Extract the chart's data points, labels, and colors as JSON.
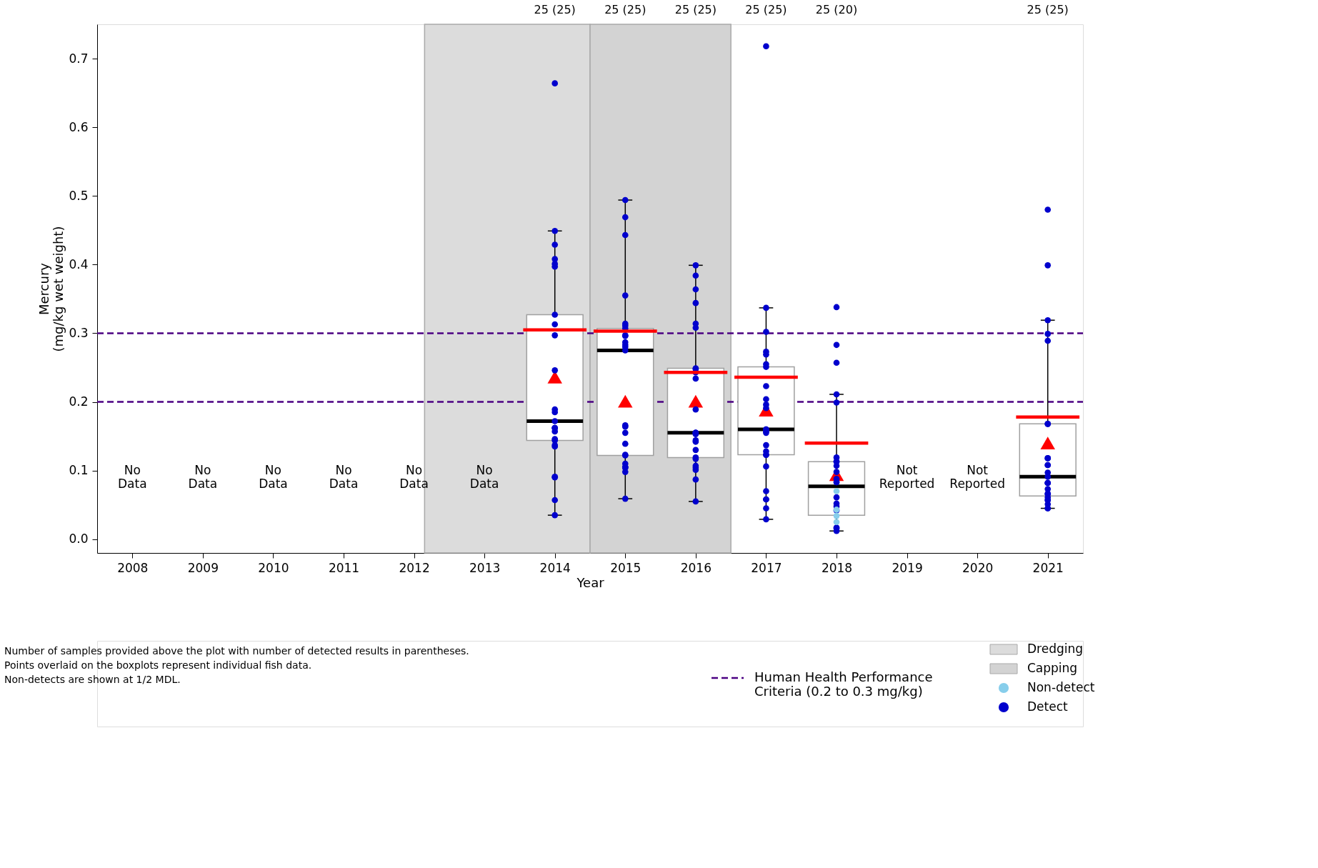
{
  "chart_data": {
    "type": "box",
    "xlabel": "Year",
    "ylabel": "Mercury\n(mg/kg wet weight)",
    "x": [
      2014,
      2015,
      2016,
      2017,
      2018,
      2021
    ],
    "xlim": [
      2007.5,
      2021.5
    ],
    "xticks": [
      2008,
      2009,
      2010,
      2011,
      2012,
      2013,
      2014,
      2015,
      2016,
      2017,
      2018,
      2019,
      2020,
      2021
    ],
    "ylim": [
      -0.02,
      0.75
    ],
    "yticks": [
      {
        "value": 0,
        "label": "0.0"
      },
      0.1,
      0.2,
      0.3,
      0.4,
      0.5,
      0.6,
      0.7
    ],
    "grid": false,
    "legend": "bottom right",
    "boxes": [
      {
        "low": 0.035,
        "q1": 0.144,
        "median": 0.172,
        "q3": 0.327,
        "high": 0.449,
        "mean": 0.236
      },
      {
        "low": 0.059,
        "q1": 0.122,
        "median": 0.275,
        "q3": 0.307,
        "high": 0.494,
        "mean": 0.201
      },
      {
        "low": 0.055,
        "q1": 0.119,
        "median": 0.155,
        "q3": 0.249,
        "high": 0.399,
        "mean": 0.201
      },
      {
        "low": 0.029,
        "q1": 0.123,
        "median": 0.16,
        "q3": 0.251,
        "high": 0.337,
        "mean": 0.188
      },
      {
        "low": 0.012,
        "q1": 0.035,
        "median": 0.077,
        "q3": 0.113,
        "high": 0.211,
        "mean": 0.094
      },
      {
        "low": 0.045,
        "q1": 0.063,
        "median": 0.091,
        "q3": 0.168,
        "high": 0.319,
        "mean": 0.14
      }
    ],
    "series": [
      {
        "type": "line",
        "color": "#ff0000",
        "line_style": "solid",
        "x": [
          2013.55,
          2014.45
        ],
        "values": [
          0.305,
          0.305
        ]
      },
      {
        "type": "line",
        "color": "#ff0000",
        "line_style": "solid",
        "x": [
          2014.55,
          2015.45
        ],
        "values": [
          0.303,
          0.303
        ]
      },
      {
        "type": "line",
        "color": "#ff0000",
        "line_style": "solid",
        "x": [
          2015.55,
          2016.45
        ],
        "values": [
          0.243,
          0.243
        ]
      },
      {
        "type": "line",
        "color": "#ff0000",
        "line_style": "solid",
        "x": [
          2016.55,
          2017.45
        ],
        "values": [
          0.236,
          0.236
        ]
      },
      {
        "type": "line",
        "color": "#ff0000",
        "line_style": "solid",
        "x": [
          2017.55,
          2018.45
        ],
        "values": [
          0.14,
          0.14
        ]
      },
      {
        "type": "line",
        "color": "#ff0000",
        "line_style": "solid",
        "x": [
          2020.55,
          2021.45
        ],
        "values": [
          0.178,
          0.178
        ]
      },
      {
        "type": "scatter",
        "name": "Non-detect",
        "color": "#87ceeb",
        "marker": "circle",
        "x": [
          2018,
          2018,
          2018,
          2018
        ],
        "values": [
          0.07,
          0.043,
          0.034,
          0.025
        ]
      },
      {
        "type": "scatter",
        "name": "Detect",
        "color": "#0000cd",
        "marker": "circle",
        "x": [
          2014,
          2014,
          2014,
          2014,
          2014,
          2014,
          2014,
          2014,
          2014,
          2014,
          2014,
          2014,
          2014,
          2014,
          2014,
          2014,
          2014,
          2014,
          2014,
          2014,
          2014,
          2014,
          2014,
          2014,
          2014,
          2015,
          2015,
          2015,
          2015,
          2015,
          2015,
          2015,
          2015,
          2015,
          2015,
          2015,
          2015,
          2015,
          2015,
          2015,
          2015,
          2015,
          2015,
          2015,
          2015,
          2015,
          2015,
          2015,
          2015,
          2015,
          2016,
          2016,
          2016,
          2016,
          2016,
          2016,
          2016,
          2016,
          2016,
          2016,
          2016,
          2016,
          2016,
          2016,
          2016,
          2016,
          2016,
          2016,
          2016,
          2016,
          2016,
          2016,
          2016,
          2016,
          2016,
          2017,
          2017,
          2017,
          2017,
          2017,
          2017,
          2017,
          2017,
          2017,
          2017,
          2017,
          2017,
          2017,
          2017,
          2017,
          2017,
          2017,
          2017,
          2017,
          2017,
          2017,
          2017,
          2017,
          2017,
          2017,
          2018,
          2018,
          2018,
          2018,
          2018,
          2018,
          2018,
          2018,
          2018,
          2018,
          2018,
          2018,
          2018,
          2018,
          2018,
          2018,
          2018,
          2018,
          2018,
          2018,
          2021,
          2021,
          2021,
          2021,
          2021,
          2021,
          2021,
          2021,
          2021,
          2021,
          2021,
          2021,
          2021,
          2021,
          2021,
          2021,
          2021,
          2021,
          2021,
          2021,
          2021,
          2021,
          2021,
          2021,
          2021
        ],
        "values": [
          0.664,
          0.449,
          0.429,
          0.408,
          0.401,
          0.397,
          0.327,
          0.313,
          0.297,
          0.246,
          0.189,
          0.185,
          0.172,
          0.162,
          0.162,
          0.162,
          0.157,
          0.146,
          0.144,
          0.137,
          0.135,
          0.091,
          0.09,
          0.057,
          0.035,
          0.494,
          0.469,
          0.443,
          0.355,
          0.314,
          0.311,
          0.307,
          0.297,
          0.296,
          0.287,
          0.283,
          0.28,
          0.275,
          0.166,
          0.164,
          0.155,
          0.139,
          0.123,
          0.122,
          0.11,
          0.105,
          0.105,
          0.104,
          0.098,
          0.059,
          0.399,
          0.384,
          0.364,
          0.344,
          0.314,
          0.308,
          0.249,
          0.248,
          0.243,
          0.234,
          0.189,
          0.155,
          0.155,
          0.155,
          0.153,
          0.144,
          0.142,
          0.13,
          0.119,
          0.117,
          0.107,
          0.104,
          0.101,
          0.087,
          0.055,
          0.718,
          0.337,
          0.302,
          0.273,
          0.269,
          0.255,
          0.251,
          0.223,
          0.204,
          0.196,
          0.191,
          0.16,
          0.16,
          0.157,
          0.155,
          0.137,
          0.128,
          0.123,
          0.123,
          0.106,
          0.07,
          0.058,
          0.058,
          0.045,
          0.029,
          0.338,
          0.283,
          0.257,
          0.211,
          0.199,
          0.119,
          0.113,
          0.113,
          0.107,
          0.098,
          0.088,
          0.083,
          0.083,
          0.061,
          0.052,
          0.048,
          0.042,
          0.016,
          0.017,
          0.012,
          0.48,
          0.399,
          0.319,
          0.299,
          0.289,
          0.168,
          0.168,
          0.118,
          0.118,
          0.108,
          0.108,
          0.097,
          0.091,
          0.082,
          0.082,
          0.082,
          0.073,
          0.066,
          0.066,
          0.061,
          0.057,
          0.057,
          0.051,
          0.045,
          0.045
        ]
      }
    ],
    "ref_lines": [
      {
        "axis": "y",
        "value": 0.3,
        "color": "#4b0082",
        "line_style": "dashed",
        "label": "Human Health Performance Criteria (0.2 to 0.3 mg/kg)"
      },
      {
        "axis": "y",
        "value": 0.2,
        "color": "#4b0082",
        "line_style": "dashed"
      }
    ],
    "bands": [
      {
        "axis": "x",
        "from": 2012.15,
        "to": 2014.5,
        "label": "Dredging",
        "color": "#dcdcdc"
      },
      {
        "axis": "x",
        "from": 2014.5,
        "to": 2016.5,
        "label": "Capping",
        "color": "#d3d3d3"
      }
    ],
    "annotations": [
      "No\nData",
      "No\nData",
      "No\nData",
      "No\nData",
      "No\nData",
      "No\nData",
      "Not\nReported",
      "Not\nReported",
      "25 (25)",
      "25 (25)",
      "25 (25)",
      "25 (25)",
      "25 (20)",
      "25 (25)",
      "Number of samples provided above the plot with number of detected results in parentheses.",
      "Points overlaid on the boxplots represent individual fish data.",
      "Non-detects are shown at 1/2 MDL."
    ]
  }
}
